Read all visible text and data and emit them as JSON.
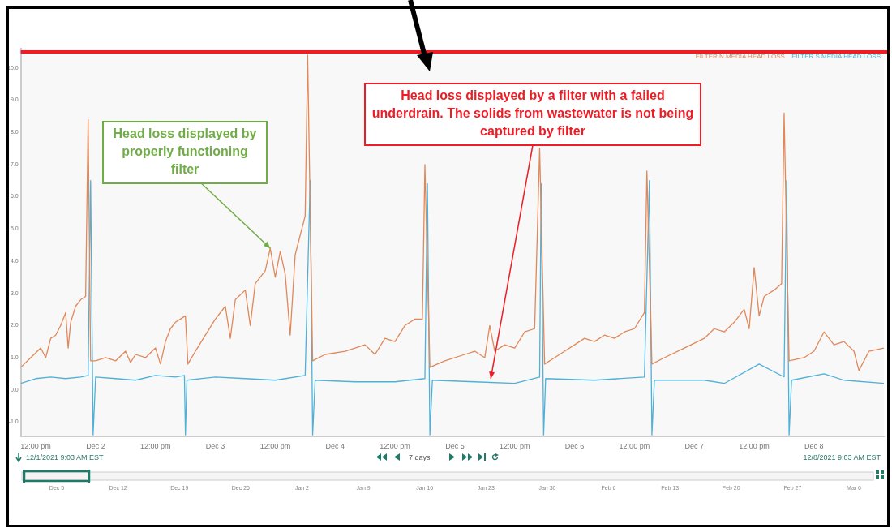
{
  "chart_data": {
    "type": "line",
    "series": [
      {
        "name": "FILTER N MEDIA HEAD LOSS",
        "color": "#e0885a",
        "x": [
          "2021-12-01T09:00",
          "2021-12-01T11:00",
          "2021-12-01T13:00",
          "2021-12-01T14:00",
          "2021-12-01T15:00",
          "2021-12-01T16:00",
          "2021-12-01T17:00",
          "2021-12-01T18:00",
          "2021-12-01T18:30",
          "2021-12-01T19:00",
          "2021-12-01T20:00",
          "2021-12-01T21:00",
          "2021-12-01T22:00",
          "2021-12-01T22:30",
          "2021-12-01T23:00",
          "2021-12-02T00:00",
          "2021-12-02T02:00",
          "2021-12-02T04:00",
          "2021-12-02T06:00",
          "2021-12-02T07:00",
          "2021-12-02T08:00",
          "2021-12-02T10:00",
          "2021-12-02T12:00",
          "2021-12-02T13:00",
          "2021-12-02T14:00",
          "2021-12-02T15:00",
          "2021-12-02T16:00",
          "2021-12-02T17:00",
          "2021-12-02T18:00",
          "2021-12-02T18:30",
          "2021-12-02T20:00",
          "2021-12-02T22:00",
          "2021-12-03T00:00",
          "2021-12-03T02:00",
          "2021-12-03T03:00",
          "2021-12-03T04:00",
          "2021-12-03T06:00",
          "2021-12-03T07:00",
          "2021-12-03T08:00",
          "2021-12-03T10:00",
          "2021-12-03T11:00",
          "2021-12-03T12:00",
          "2021-12-03T13:00",
          "2021-12-03T14:00",
          "2021-12-03T15:00",
          "2021-12-03T16:00",
          "2021-12-03T17:00",
          "2021-12-03T18:00",
          "2021-12-03T18:30",
          "2021-12-03T19:30",
          "2021-12-03T22:00",
          "2021-12-04T02:00",
          "2021-12-04T06:00",
          "2021-12-04T08:00",
          "2021-12-04T10:00",
          "2021-12-04T12:00",
          "2021-12-04T14:00",
          "2021-12-04T16:00",
          "2021-12-04T17:30",
          "2021-12-04T18:00",
          "2021-12-04T19:00",
          "2021-12-04T22:00",
          "2021-12-05T02:00",
          "2021-12-05T04:00",
          "2021-12-05T06:00",
          "2021-12-05T07:00",
          "2021-12-05T08:00",
          "2021-12-05T10:00",
          "2021-12-05T12:00",
          "2021-12-05T14:00",
          "2021-12-05T16:00",
          "2021-12-05T17:00",
          "2021-12-05T18:00",
          "2021-12-05T20:00",
          "2021-12-05T22:00",
          "2021-12-06T00:00",
          "2021-12-06T02:00",
          "2021-12-06T04:00",
          "2021-12-06T06:00",
          "2021-12-06T08:00",
          "2021-12-06T10:00",
          "2021-12-06T12:00",
          "2021-12-06T14:00",
          "2021-12-06T14:30",
          "2021-12-06T15:30",
          "2021-12-06T18:00",
          "2021-12-06T22:00",
          "2021-12-07T02:00",
          "2021-12-07T04:00",
          "2021-12-07T06:00",
          "2021-12-07T08:00",
          "2021-12-07T10:00",
          "2021-12-07T11:00",
          "2021-12-07T12:00",
          "2021-12-07T13:00",
          "2021-12-07T14:00",
          "2021-12-07T16:00",
          "2021-12-07T17:30",
          "2021-12-07T18:00",
          "2021-12-07T19:00",
          "2021-12-07T22:00",
          "2021-12-08T00:00",
          "2021-12-08T02:00",
          "2021-12-08T04:00",
          "2021-12-08T06:00",
          "2021-12-08T08:00",
          "2021-12-08T09:00",
          "2021-12-08T11:00",
          "2021-12-08T14:00"
        ],
        "values": [
          0.7,
          1.0,
          1.3,
          1.0,
          1.6,
          1.7,
          2.0,
          2.4,
          1.3,
          2.1,
          2.6,
          2.8,
          2.9,
          8.4,
          0.9,
          0.9,
          1.0,
          0.9,
          1.2,
          0.85,
          1.1,
          1.0,
          1.3,
          0.8,
          1.5,
          1.9,
          2.1,
          2.2,
          2.3,
          0.8,
          1.2,
          1.7,
          2.2,
          2.6,
          1.6,
          2.8,
          3.1,
          2.0,
          3.3,
          3.7,
          4.4,
          3.5,
          4.3,
          3.6,
          1.7,
          4.2,
          4.8,
          5.4,
          10.4,
          0.9,
          1.1,
          1.2,
          1.4,
          1.1,
          1.6,
          1.5,
          2.0,
          2.2,
          2.2,
          7.0,
          0.7,
          0.9,
          1.1,
          1.2,
          1.0,
          2.0,
          1.2,
          1.4,
          1.3,
          1.8,
          1.9,
          7.5,
          0.8,
          1.0,
          1.2,
          1.4,
          1.6,
          1.5,
          1.7,
          1.6,
          1.8,
          1.9,
          2.4,
          6.8,
          0.8,
          1.0,
          1.3,
          1.6,
          1.9,
          1.8,
          2.1,
          2.5,
          1.9,
          3.8,
          2.3,
          2.9,
          3.1,
          3.3,
          8.6,
          0.9,
          1.0,
          1.2,
          1.8,
          1.4,
          1.5,
          1.2,
          0.6,
          1.2,
          1.3
        ]
      },
      {
        "name": "FILTER S MEDIA HEAD LOSS",
        "color": "#4fb0d8",
        "x": [
          "2021-12-01T09:00",
          "2021-12-01T12:00",
          "2021-12-01T15:00",
          "2021-12-01T18:00",
          "2021-12-01T21:00",
          "2021-12-01T22:30",
          "2021-12-01T23:00",
          "2021-12-01T23:30",
          "2021-12-02T00:00",
          "2021-12-02T04:00",
          "2021-12-02T08:00",
          "2021-12-02T12:00",
          "2021-12-02T16:00",
          "2021-12-02T17:48",
          "2021-12-02T18:00",
          "2021-12-02T18:18",
          "2021-12-03T00:00",
          "2021-12-03T06:00",
          "2021-12-03T12:00",
          "2021-12-03T18:00",
          "2021-12-03T19:00",
          "2021-12-03T19:30",
          "2021-12-03T20:00",
          "2021-12-04T04:00",
          "2021-12-04T12:00",
          "2021-12-04T18:00",
          "2021-12-04T18:30",
          "2021-12-04T19:00",
          "2021-12-04T19:30",
          "2021-12-05T04:00",
          "2021-12-05T12:00",
          "2021-12-05T17:00",
          "2021-12-05T17:18",
          "2021-12-05T17:48",
          "2021-12-05T18:12",
          "2021-12-06T04:00",
          "2021-12-06T14:00",
          "2021-12-06T15:00",
          "2021-12-06T15:30",
          "2021-12-06T16:00",
          "2021-12-07T02:00",
          "2021-12-07T06:00",
          "2021-12-07T13:00",
          "2021-12-07T18:00",
          "2021-12-07T18:30",
          "2021-12-07T19:00",
          "2021-12-07T19:30",
          "2021-12-08T02:00",
          "2021-12-08T06:00",
          "2021-12-08T14:00"
        ],
        "values": [
          0.2,
          0.35,
          0.4,
          0.35,
          0.4,
          0.45,
          6.5,
          -1.4,
          0.4,
          0.35,
          0.3,
          0.45,
          0.4,
          0.45,
          -1.4,
          0.3,
          0.4,
          0.35,
          0.3,
          0.45,
          6.5,
          -1.4,
          0.3,
          0.25,
          0.25,
          0.35,
          6.4,
          -1.4,
          0.3,
          0.25,
          0.2,
          0.4,
          6.4,
          -1.4,
          0.35,
          0.3,
          0.4,
          6.5,
          -1.4,
          0.3,
          0.3,
          0.2,
          0.8,
          0.4,
          6.5,
          -1.4,
          0.3,
          0.5,
          0.3,
          0.2
        ]
      }
    ],
    "xlim": [
      "2021-12-01T09:00",
      "2021-12-08T14:00"
    ],
    "xticks": [
      {
        "value": "2021-12-01T12:00",
        "label": "12:00 pm"
      },
      {
        "value": "2021-12-02T00:00",
        "label": "Dec 2"
      },
      {
        "value": "2021-12-02T12:00",
        "label": "12:00 pm"
      },
      {
        "value": "2021-12-03T00:00",
        "label": "Dec 3"
      },
      {
        "value": "2021-12-03T12:00",
        "label": "12:00 pm"
      },
      {
        "value": "2021-12-04T00:00",
        "label": "Dec 4"
      },
      {
        "value": "2021-12-04T12:00",
        "label": "12:00 pm"
      },
      {
        "value": "2021-12-05T00:00",
        "label": "Dec 5"
      },
      {
        "value": "2021-12-05T12:00",
        "label": "12:00 pm"
      },
      {
        "value": "2021-12-06T00:00",
        "label": "Dec 6"
      },
      {
        "value": "2021-12-06T12:00",
        "label": "12:00 pm"
      },
      {
        "value": "2021-12-07T00:00",
        "label": "Dec 7"
      },
      {
        "value": "2021-12-07T12:00",
        "label": "12:00 pm"
      },
      {
        "value": "2021-12-08T00:00",
        "label": "Dec 8"
      }
    ],
    "ylim": [
      -1.45,
      10.6
    ],
    "yticks": [
      {
        "value": -1,
        "label": "-1.0"
      },
      {
        "value": 0,
        "label": "0.0"
      },
      {
        "value": 1,
        "label": "1.0"
      },
      {
        "value": 2,
        "label": "2.0"
      },
      {
        "value": 3,
        "label": "3.0"
      },
      {
        "value": 4,
        "label": "4.0"
      },
      {
        "value": 5,
        "label": "5.0"
      },
      {
        "value": 6,
        "label": "6.0"
      },
      {
        "value": 7,
        "label": "7.0"
      },
      {
        "value": 8,
        "label": "8.0"
      },
      {
        "value": 9,
        "label": "9.0"
      },
      {
        "value": 10,
        "label": "10.0"
      }
    ],
    "ref_lines": [
      {
        "axis": "y",
        "value": 10.5,
        "color": "#ee1c24"
      }
    ],
    "grid": false,
    "legend": "top right",
    "marker": "none",
    "line_style": "solid",
    "annotations": [
      {
        "text": "Head loss displayed by properly functioning filter",
        "x": "2021-12-03T11:00",
        "y": 4.4
      },
      {
        "text": "Head loss displayed by a filter with a failed underdrain. The solids from wastewater is not being captured by filter",
        "x": "2021-12-05T07:12",
        "y": 0.35
      },
      "12/1/2021 9:03 AM EST",
      "7 days",
      "12/8/2021 9:03 AM EST",
      "Dec 5",
      "Dec 12",
      "Dec 19",
      "Dec 26",
      "Jan 2",
      "Jan 9",
      "Jan 16",
      "Jan 23",
      "Jan 30",
      "Feb 6",
      "Feb 13",
      "Feb 20",
      "Feb 27",
      "Mar 6"
    ]
  }
}
